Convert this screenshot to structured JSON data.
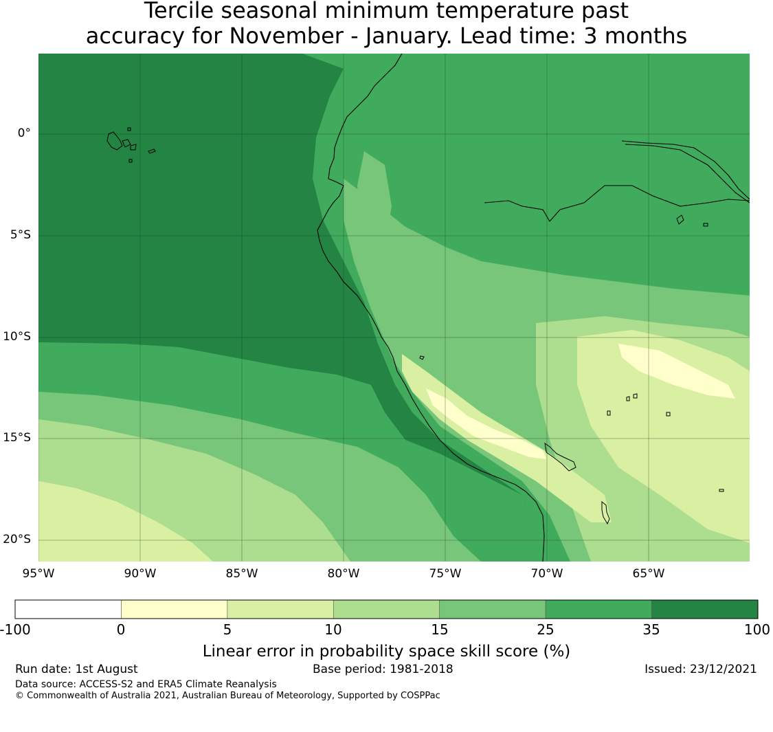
{
  "title_line1": "Tercile seasonal minimum temperature past",
  "title_line2": "accuracy for November - January. Lead time: 3 months",
  "map": {
    "lat_labels": [
      "0°",
      "5°S",
      "10°S",
      "15°S",
      "20°S"
    ],
    "lon_labels": [
      "95°W",
      "90°W",
      "85°W",
      "80°W",
      "75°W",
      "70°W",
      "65°W"
    ],
    "background_color": "#238443",
    "regions": [
      {
        "name": "west-band",
        "color": "#41ab5d"
      },
      {
        "name": "south-band",
        "color": "#78c679"
      },
      {
        "name": "light-band",
        "color": "#addd8e"
      },
      {
        "name": "pale-band",
        "color": "#d9f0a3"
      },
      {
        "name": "andes-ridge",
        "color": "#ffffcc"
      }
    ]
  },
  "colorbar": {
    "bins": [
      {
        "color": "#ffffff"
      },
      {
        "color": "#ffffcc"
      },
      {
        "color": "#d9f0a3"
      },
      {
        "color": "#addd8e"
      },
      {
        "color": "#78c679"
      },
      {
        "color": "#41ab5d"
      },
      {
        "color": "#238443"
      }
    ],
    "tick_labels": [
      "-100",
      "0",
      "5",
      "10",
      "15",
      "25",
      "35",
      "100"
    ],
    "label": "Linear error in probability space skill score (%)"
  },
  "footer": {
    "run_date": "Run date: 1st August",
    "base_period": "Base period: 1981-2018",
    "issued": "Issued: 23/12/2021",
    "data_source": "Data source: ACCESS-S2 and ERA5 Climate Reanalysis",
    "copyright": "© Commonwealth of Australia 2021, Australian Bureau of Meteorology, Supported by COSPPac"
  }
}
